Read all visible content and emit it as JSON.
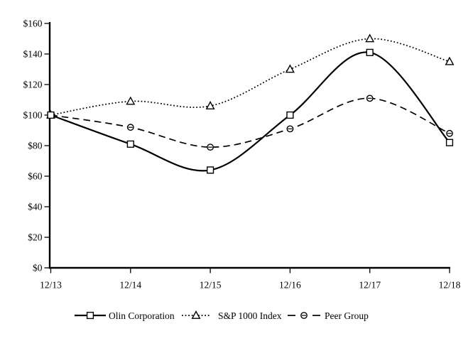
{
  "page": {
    "background": "#ffffff"
  },
  "chart_data": {
    "type": "line",
    "title": "",
    "categories": [
      "12/13",
      "12/14",
      "12/15",
      "12/16",
      "12/17",
      "12/18"
    ],
    "series": [
      {
        "name": "Olin Corporation",
        "marker": "square",
        "line_style": "solid",
        "values": [
          100,
          81,
          64,
          100,
          141,
          82
        ]
      },
      {
        "name": "S&P 1000 Index",
        "marker": "triangle",
        "line_style": "dotted",
        "values": [
          100,
          109,
          106,
          130,
          150,
          135
        ]
      },
      {
        "name": "Peer Group",
        "marker": "circle",
        "line_style": "dashed",
        "values": [
          100,
          92,
          79,
          91,
          111,
          88
        ]
      }
    ],
    "y_axis": {
      "min": 0,
      "max": 160,
      "step": 20,
      "tick_labels": [
        "$0",
        "$20",
        "$40",
        "$60",
        "$80",
        "$100",
        "$120",
        "$140",
        "$160"
      ]
    },
    "x_axis": {
      "tick_labels": [
        "12/13",
        "12/14",
        "12/15",
        "12/16",
        "12/17",
        "12/18"
      ]
    },
    "legend": {
      "position": "bottom",
      "entries": [
        "Olin Corporation",
        "S&P 1000 Index",
        "Peer Group"
      ]
    },
    "colors": {
      "line": "#000000",
      "background": "#ffffff",
      "marker_fill": "#ffffff"
    },
    "grid": false,
    "smoothed_lines": true
  }
}
